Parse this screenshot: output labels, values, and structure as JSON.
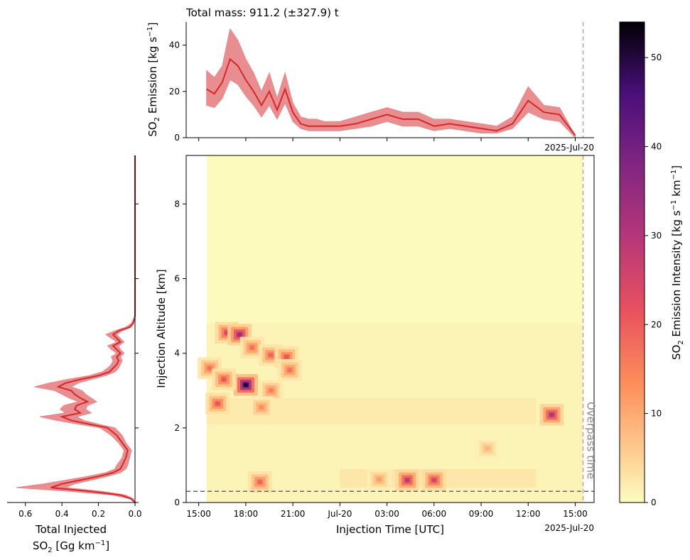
{
  "header": {
    "total_mass": "Total mass: 911.2 (±327.9) t"
  },
  "date_corner_top": "2025-Jul-20",
  "date_corner_bottom": "2025-Jul-20",
  "overpass_label": "Overpass time",
  "colors": {
    "series_line": "#d62728",
    "series_band": "#e8888a",
    "reference_line": "#888888"
  },
  "chart_data": [
    {
      "id": "emission_timeseries",
      "type": "area",
      "ylabel_main": "SO",
      "ylabel_sub": "2",
      "ylabel_rest": " Emission [kg s",
      "ylabel_sup": "−1",
      "ylabel_end": "]",
      "ylim": [
        0,
        50
      ],
      "yticks": [
        "0",
        "20",
        "40"
      ],
      "ytick_values": [
        0,
        20,
        40
      ],
      "x_hours": [
        0.5,
        1,
        1.5,
        2,
        2.5,
        3,
        3.5,
        4,
        4.5,
        5,
        5.5,
        6,
        6.5,
        7,
        7.5,
        8,
        9,
        10,
        11,
        12,
        13,
        14,
        15,
        16,
        17,
        18,
        19,
        20,
        21,
        22,
        23,
        24
      ],
      "values": [
        21,
        19,
        24,
        34,
        31,
        25,
        20,
        14,
        20,
        12,
        21,
        11,
        6,
        5,
        5,
        5,
        5,
        6,
        8,
        10,
        8,
        8,
        5,
        6,
        5,
        4,
        3,
        6,
        16,
        11,
        10,
        1
      ],
      "lower": [
        14,
        13,
        17,
        25,
        23,
        18,
        14,
        9,
        14,
        8,
        15,
        7,
        4,
        3,
        3,
        3,
        3,
        4,
        5,
        7,
        5,
        5,
        3,
        4,
        3,
        2,
        2,
        4,
        11,
        8,
        7,
        0
      ],
      "upper": [
        29,
        26,
        31,
        47,
        42,
        34,
        28,
        20,
        28,
        17,
        28,
        15,
        9,
        8,
        8,
        7,
        7,
        9,
        11,
        13,
        11,
        11,
        8,
        8,
        7,
        6,
        5,
        9,
        22,
        14,
        13,
        1
      ]
    },
    {
      "id": "injection_heatmap",
      "type": "heatmap",
      "xlabel": "Injection Time [UTC]",
      "ylabel": "Injection Altitude [km]",
      "xticks": [
        "15:00",
        "18:00",
        "21:00",
        "Jul-20",
        "03:00",
        "06:00",
        "09:00",
        "12:00",
        "15:00"
      ],
      "xtick_hours": [
        0,
        3,
        6,
        9,
        12,
        15,
        18,
        21,
        24
      ],
      "xlim_hours": [
        -0.8,
        25.2
      ],
      "data_start_hour": 0.5,
      "overpass_hour": 24.5,
      "yticks": [
        "0",
        "2",
        "4",
        "6",
        "8"
      ],
      "ytick_values": [
        0,
        2,
        4,
        6,
        8
      ],
      "ylim": [
        0,
        9.3
      ],
      "baseline_altitude_km": 0.3,
      "colorbar": {
        "label_main": "SO",
        "label_sub": "2",
        "label_rest": " Emission Intensity [kg s",
        "label_sup1": "−1",
        "label_mid": " km",
        "label_sup2": "−1",
        "label_end": "]",
        "range": [
          0,
          54
        ],
        "ticks": [
          "0",
          "10",
          "20",
          "30",
          "40",
          "50"
        ],
        "tick_values": [
          0,
          10,
          20,
          30,
          40,
          50
        ]
      },
      "hotspots": [
        {
          "t": 3.0,
          "alt": 3.15,
          "value": 54
        },
        {
          "t": 1.8,
          "alt": 4.55,
          "value": 26
        },
        {
          "t": 2.6,
          "alt": 4.5,
          "value": 35
        },
        {
          "t": 3.4,
          "alt": 4.15,
          "value": 18
        },
        {
          "t": 4.6,
          "alt": 3.95,
          "value": 20
        },
        {
          "t": 5.6,
          "alt": 3.9,
          "value": 22
        },
        {
          "t": 5.8,
          "alt": 3.55,
          "value": 18
        },
        {
          "t": 0.7,
          "alt": 3.6,
          "value": 18
        },
        {
          "t": 1.6,
          "alt": 3.3,
          "value": 22
        },
        {
          "t": 4.6,
          "alt": 3.0,
          "value": 16
        },
        {
          "t": 1.2,
          "alt": 2.65,
          "value": 22
        },
        {
          "t": 4.0,
          "alt": 2.55,
          "value": 14
        },
        {
          "t": 22.5,
          "alt": 2.35,
          "value": 32
        },
        {
          "t": 13.3,
          "alt": 0.6,
          "value": 30
        },
        {
          "t": 15.0,
          "alt": 0.6,
          "value": 26
        },
        {
          "t": 11.5,
          "alt": 0.62,
          "value": 12
        },
        {
          "t": 3.9,
          "alt": 0.55,
          "value": 20
        },
        {
          "t": 18.4,
          "alt": 1.45,
          "value": 9
        }
      ]
    },
    {
      "id": "total_injected_profile",
      "type": "line",
      "xlabel_line1": "Total Injected",
      "xlabel_line2_main": "SO",
      "xlabel_line2_sub": "2",
      "xlabel_line2_rest": " [Gg km",
      "xlabel_line2_sup": "−1",
      "xlabel_line2_end": "]",
      "xticks": [
        "0.6",
        "0.4",
        "0.2",
        "0.0"
      ],
      "xtick_values": [
        0.6,
        0.4,
        0.2,
        0.0
      ],
      "xlim": [
        0.7,
        0.0
      ],
      "ylim": [
        0,
        9.3
      ],
      "altitude": [
        0,
        0.1,
        0.2,
        0.3,
        0.4,
        0.5,
        0.6,
        0.7,
        0.8,
        0.9,
        1.0,
        1.2,
        1.4,
        1.6,
        1.8,
        2.0,
        2.1,
        2.2,
        2.3,
        2.4,
        2.5,
        2.6,
        2.7,
        2.8,
        2.9,
        3.0,
        3.1,
        3.2,
        3.3,
        3.4,
        3.5,
        3.6,
        3.7,
        3.8,
        3.9,
        4.0,
        4.1,
        4.2,
        4.3,
        4.4,
        4.5,
        4.6,
        4.7,
        4.8,
        5.0,
        6.0,
        7.0,
        8.0,
        9.3
      ],
      "values": [
        0.0,
        0.02,
        0.08,
        0.25,
        0.46,
        0.4,
        0.3,
        0.2,
        0.12,
        0.08,
        0.07,
        0.05,
        0.04,
        0.07,
        0.1,
        0.15,
        0.25,
        0.35,
        0.4,
        0.3,
        0.33,
        0.32,
        0.26,
        0.3,
        0.33,
        0.35,
        0.42,
        0.38,
        0.3,
        0.2,
        0.14,
        0.12,
        0.1,
        0.09,
        0.1,
        0.08,
        0.1,
        0.12,
        0.08,
        0.1,
        0.12,
        0.09,
        0.03,
        0.01,
        0.0,
        0.0,
        0.0,
        0.0,
        0.0
      ],
      "lower": [
        0.0,
        0.01,
        0.05,
        0.18,
        0.38,
        0.33,
        0.24,
        0.15,
        0.08,
        0.05,
        0.04,
        0.03,
        0.02,
        0.05,
        0.07,
        0.11,
        0.2,
        0.28,
        0.32,
        0.24,
        0.27,
        0.26,
        0.21,
        0.24,
        0.27,
        0.29,
        0.35,
        0.31,
        0.24,
        0.16,
        0.11,
        0.09,
        0.08,
        0.07,
        0.08,
        0.06,
        0.08,
        0.09,
        0.06,
        0.08,
        0.1,
        0.07,
        0.02,
        0.01,
        0.0,
        0.0,
        0.0,
        0.0,
        0.0
      ],
      "upper": [
        0.0,
        0.03,
        0.12,
        0.36,
        0.65,
        0.5,
        0.38,
        0.26,
        0.16,
        0.11,
        0.1,
        0.07,
        0.06,
        0.09,
        0.13,
        0.19,
        0.31,
        0.43,
        0.52,
        0.38,
        0.41,
        0.39,
        0.31,
        0.36,
        0.4,
        0.44,
        0.55,
        0.47,
        0.37,
        0.25,
        0.18,
        0.15,
        0.13,
        0.12,
        0.13,
        0.1,
        0.13,
        0.15,
        0.1,
        0.13,
        0.16,
        0.11,
        0.05,
        0.02,
        0.0,
        0.0,
        0.0,
        0.0,
        0.0
      ]
    }
  ]
}
